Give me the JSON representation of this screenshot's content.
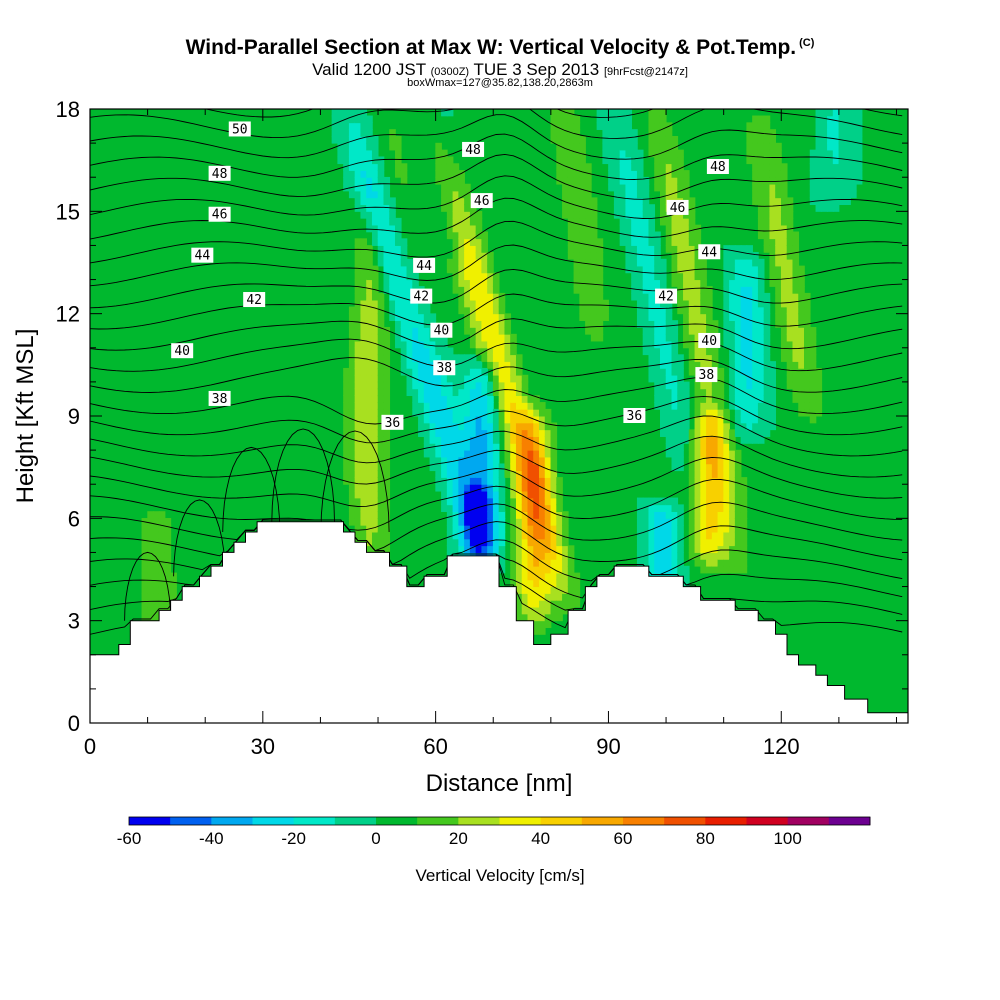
{
  "title": {
    "line1": "Wind-Parallel Section at Max W: Vertical Velocity & Pot.Temp.",
    "copyright": "(C)",
    "line2_a": "Valid 1200 JST",
    "line2_b": "(0300Z)",
    "line2_c": "TUE 3 Sep 2013",
    "line2_d": "[9hrFcst@2147z]",
    "line3": "boxWmax=127@35.82,138.20,2863m"
  },
  "chart_data": {
    "type": "heatmap",
    "xlabel": "Distance [nm]",
    "ylabel": "Height [Kft MSL]",
    "xlim": [
      0,
      142
    ],
    "ylim": [
      0,
      18
    ],
    "x_ticks": [
      0,
      30,
      60,
      90,
      120
    ],
    "y_ticks": [
      0,
      3,
      6,
      9,
      12,
      15,
      18
    ],
    "colorbar": {
      "title": "Vertical Velocity [cm/s]",
      "tick_labels": [
        "-60",
        "-40",
        "-20",
        "0",
        "20",
        "40",
        "60",
        "80",
        "100"
      ],
      "tick_values": [
        -60,
        -40,
        -20,
        0,
        20,
        40,
        60,
        80,
        100
      ],
      "levels": [
        -60,
        -50,
        -40,
        -30,
        -20,
        -10,
        0,
        10,
        20,
        30,
        40,
        50,
        60,
        70,
        80,
        90,
        100,
        110
      ],
      "colors": [
        "#0000f0",
        "#0060f0",
        "#00a8f0",
        "#00d8e8",
        "#00e8c8",
        "#00d088",
        "#00b82e",
        "#44c81e",
        "#a8e020",
        "#f0f000",
        "#f8d000",
        "#f8a800",
        "#f88000",
        "#f05000",
        "#e81e00",
        "#d00020",
        "#a00060",
        "#6c0090"
      ]
    },
    "terrain_kft": [
      [
        0,
        2.0
      ],
      [
        0,
        1.0
      ],
      [
        0,
        2.0
      ],
      [
        5,
        2.0
      ],
      [
        5,
        2.3
      ],
      [
        7,
        2.3
      ],
      [
        7,
        3.0
      ],
      [
        12,
        3.0
      ],
      [
        12,
        3.3
      ],
      [
        14,
        3.3
      ],
      [
        14,
        3.6
      ],
      [
        16,
        3.6
      ],
      [
        16,
        4.0
      ],
      [
        19,
        4.0
      ],
      [
        19,
        4.3
      ],
      [
        21,
        4.3
      ],
      [
        21,
        4.6
      ],
      [
        23,
        4.6
      ],
      [
        23,
        5.0
      ],
      [
        25,
        5.0
      ],
      [
        25,
        5.3
      ],
      [
        27,
        5.3
      ],
      [
        27,
        5.6
      ],
      [
        29,
        5.6
      ],
      [
        29,
        5.9
      ],
      [
        44,
        5.9
      ],
      [
        44,
        5.6
      ],
      [
        46,
        5.6
      ],
      [
        46,
        5.3
      ],
      [
        48,
        5.3
      ],
      [
        48,
        5.0
      ],
      [
        52,
        5.0
      ],
      [
        52,
        4.6
      ],
      [
        55,
        4.6
      ],
      [
        55,
        4.0
      ],
      [
        58,
        4.0
      ],
      [
        58,
        4.3
      ],
      [
        62,
        4.3
      ],
      [
        62,
        4.9
      ],
      [
        71,
        4.9
      ],
      [
        71,
        4.0
      ],
      [
        74,
        4.0
      ],
      [
        74,
        3.0
      ],
      [
        77,
        3.0
      ],
      [
        77,
        2.3
      ],
      [
        80,
        2.3
      ],
      [
        80,
        2.6
      ],
      [
        83,
        2.6
      ],
      [
        83,
        3.3
      ],
      [
        86,
        3.3
      ],
      [
        86,
        4.0
      ],
      [
        88,
        4.0
      ],
      [
        88,
        4.3
      ],
      [
        91,
        4.3
      ],
      [
        91,
        4.6
      ],
      [
        97,
        4.6
      ],
      [
        97,
        4.3
      ],
      [
        103,
        4.3
      ],
      [
        103,
        4.0
      ],
      [
        106,
        4.0
      ],
      [
        106,
        3.6
      ],
      [
        112,
        3.6
      ],
      [
        112,
        3.3
      ],
      [
        116,
        3.3
      ],
      [
        116,
        3.0
      ],
      [
        119,
        3.0
      ],
      [
        119,
        2.6
      ],
      [
        121,
        2.6
      ],
      [
        121,
        2.0
      ],
      [
        123,
        2.0
      ],
      [
        123,
        1.7
      ],
      [
        126,
        1.7
      ],
      [
        126,
        1.4
      ],
      [
        128,
        1.4
      ],
      [
        128,
        1.1
      ],
      [
        131,
        1.1
      ],
      [
        131,
        0.7
      ],
      [
        135,
        0.7
      ],
      [
        135,
        0.3
      ],
      [
        142,
        0.3
      ],
      [
        142,
        0
      ],
      [
        0,
        0
      ]
    ],
    "plumes": [
      {
        "x": 48.5,
        "y": 9.5,
        "w": 20,
        "base": 4.0,
        "top": 15.0,
        "lean": 0.0
      },
      {
        "x": 47.5,
        "y": 9.2,
        "w": 7,
        "base": 6.8,
        "top": 11.8,
        "lean": 0.0
      },
      {
        "x": 73.0,
        "y": 9.5,
        "w": 35,
        "base": 3.5,
        "top": 18.0,
        "lean": -0.55
      },
      {
        "x": 77.0,
        "y": 6.5,
        "w": 40,
        "base": 3.0,
        "top": 9.0,
        "lean": 0.0
      },
      {
        "x": 108.0,
        "y": 9.0,
        "w": 20,
        "base": 4.0,
        "top": 18.0,
        "lean": -0.35
      },
      {
        "x": 107.5,
        "y": 6.8,
        "w": 38,
        "base": 5.0,
        "top": 8.8,
        "lean": 0.0
      },
      {
        "x": 121.0,
        "y": 13.0,
        "w": 18,
        "base": 9.0,
        "top": 18.0,
        "lean": -0.3
      },
      {
        "x": 85.0,
        "y": 14.5,
        "w": 15,
        "base": 11.0,
        "top": 18.0,
        "lean": -0.3
      },
      {
        "x": 12.0,
        "y": 4.0,
        "w": 15,
        "base": 2.5,
        "top": 6.0,
        "lean": 0.0
      },
      {
        "x": 55.0,
        "y": 14.0,
        "w": 10,
        "base": 11.0,
        "top": 18.0,
        "lean": -0.3
      }
    ],
    "downdrafts": [
      {
        "x": 53.5,
        "y": 13.0,
        "w": -30,
        "base": 5.0,
        "top": 18.0,
        "lean": -0.6
      },
      {
        "x": 68.0,
        "y": 8.0,
        "w": -35,
        "base": 5.0,
        "top": 10.5,
        "lean": 0.0
      },
      {
        "x": 67.0,
        "y": 5.2,
        "w": -25,
        "base": 4.3,
        "top": 6.5,
        "lean": 0.0
      },
      {
        "x": 99.0,
        "y": 11.5,
        "w": -15,
        "base": 6.5,
        "top": 18.0,
        "lean": -0.4
      },
      {
        "x": 114.0,
        "y": 11.5,
        "w": -25,
        "base": 8.5,
        "top": 13.5,
        "lean": 0.0
      },
      {
        "x": 99.5,
        "y": 5.3,
        "w": -28,
        "base": 4.5,
        "top": 6.0,
        "lean": 0.0
      },
      {
        "x": 61.0,
        "y": 16.5,
        "w": -15,
        "base": 14.0,
        "top": 18.0,
        "lean": -0.3
      },
      {
        "x": 129.0,
        "y": 17.0,
        "w": -15,
        "base": 15.5,
        "top": 18.0,
        "lean": 0.0
      }
    ],
    "theta_labels": [
      {
        "text": "50",
        "x": 26,
        "y": 17.4
      },
      {
        "text": "48",
        "x": 22.5,
        "y": 16.1
      },
      {
        "text": "46",
        "x": 22.5,
        "y": 14.9
      },
      {
        "text": "44",
        "x": 19.5,
        "y": 13.7
      },
      {
        "text": "42",
        "x": 28.5,
        "y": 12.4
      },
      {
        "text": "40",
        "x": 16,
        "y": 10.9
      },
      {
        "text": "38",
        "x": 22.5,
        "y": 9.5
      },
      {
        "text": "48",
        "x": 66.5,
        "y": 16.8
      },
      {
        "text": "46",
        "x": 68,
        "y": 15.3
      },
      {
        "text": "44",
        "x": 58,
        "y": 13.4
      },
      {
        "text": "42",
        "x": 57.5,
        "y": 12.5
      },
      {
        "text": "40",
        "x": 61,
        "y": 11.5
      },
      {
        "text": "38",
        "x": 61.5,
        "y": 10.4
      },
      {
        "text": "36",
        "x": 52.5,
        "y": 8.8
      },
      {
        "text": "48",
        "x": 109,
        "y": 16.3
      },
      {
        "text": "46",
        "x": 102,
        "y": 15.1
      },
      {
        "text": "44",
        "x": 107.5,
        "y": 13.8
      },
      {
        "text": "42",
        "x": 100,
        "y": 12.5
      },
      {
        "text": "40",
        "x": 107.5,
        "y": 11.2
      },
      {
        "text": "38",
        "x": 107,
        "y": 10.2
      },
      {
        "text": "36",
        "x": 94.5,
        "y": 9.0
      }
    ]
  }
}
